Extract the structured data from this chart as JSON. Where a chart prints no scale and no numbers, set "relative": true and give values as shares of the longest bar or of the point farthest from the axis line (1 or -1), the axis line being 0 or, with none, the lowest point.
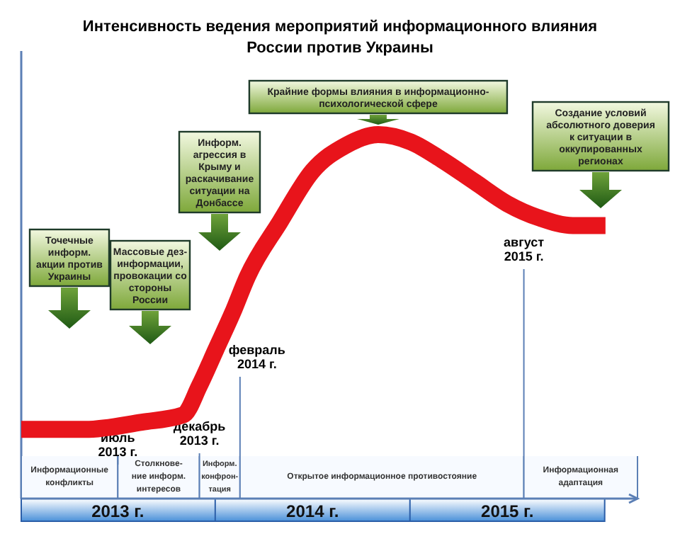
{
  "chart_data": {
    "type": "line",
    "title": "Интенсивность ведения мероприятий информационного влияния России против Украины",
    "relative": true,
    "x": [
      "2013-01",
      "2013-05",
      "2013-08-15",
      "2013-11",
      "2013-12",
      "2014-01",
      "2014-02",
      "2014-03",
      "2014-05",
      "2014-07",
      "2014-09",
      "2014-11",
      "2015-01",
      "2015-03",
      "2015-05",
      "2015-07",
      "2015-09",
      "2015-11",
      "2016-01"
    ],
    "series": [
      {
        "color": "#e8141b",
        "values": [
          0.19,
          0.19,
          0.21,
          0.23,
          0.31,
          0.41,
          0.51,
          0.61,
          0.76,
          0.9,
          0.97,
          1,
          0.98,
          0.93,
          0.87,
          0.81,
          0.77,
          0.75,
          0.75
        ]
      }
    ],
    "xlim": [
      "2013-01",
      "2016-03"
    ],
    "xticks": [
      {
        "value": "2013-07-01",
        "label": "2013 г."
      },
      {
        "value": "2014-07-01",
        "label": "2014 г."
      },
      {
        "value": "2015-07-01",
        "label": "2015 г."
      }
    ],
    "ref_lines": [
      {
        "axis": "x",
        "value": "2013-07",
        "label": "июль 2013 г."
      },
      {
        "axis": "x",
        "value": "2013-12",
        "label": "декабрь 2013 г."
      },
      {
        "axis": "x",
        "value": "2014-02-15",
        "label": "февраль 2014 г."
      },
      {
        "axis": "x",
        "value": "2015-08",
        "label": "август 2015 г."
      }
    ],
    "bands": [
      {
        "axis": "x",
        "from": "2013-01",
        "to": "2013-07",
        "label": "Информационные конфликты"
      },
      {
        "axis": "x",
        "from": "2013-07",
        "to": "2013-12",
        "label": "Столкнове-ние информ. интересов"
      },
      {
        "axis": "x",
        "from": "2013-12",
        "to": "2014-02-15",
        "label": "Информ. конфрон-тация"
      },
      {
        "axis": "x",
        "from": "2014-02-15",
        "to": "2015-08",
        "label": "Открытое информационное противостояние"
      },
      {
        "axis": "x",
        "from": "2015-08",
        "to": "2016-03",
        "label": "Информационная адаптация"
      }
    ],
    "annotations": [
      "Точечные информ. акции против Украины",
      "Массовые дез-информации, провокации со стороны России",
      "Информ. агрессия в Крыму и раскачивание ситуации на Донбассе",
      {
        "text": "Крайние формы влияния в информационно-психологической сфере",
        "x": "2014-11",
        "y": 1
      },
      "Создание условий абсолютного доверия к ситуации в оккупированных регионах"
    ]
  }
}
